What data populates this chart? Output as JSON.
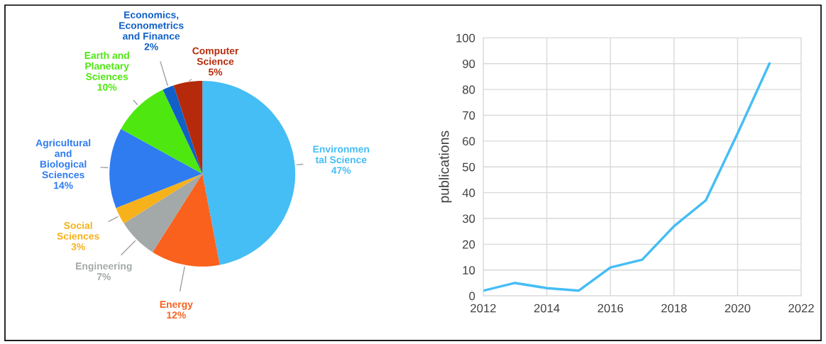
{
  "chart_data": [
    {
      "type": "pie",
      "categories": [
        "Environmen\ntal Science",
        "Energy",
        "Engineering",
        "Social\nSciences",
        "Agricultural\nand\nBiological\nSciences",
        "Earth and\nPlanetary\nSciences",
        "Economics,\nEconometrics\nand Finance",
        "Computer\nScience"
      ],
      "values": [
        47,
        12,
        7,
        3,
        14,
        10,
        2,
        5
      ],
      "value_labels": [
        "47%",
        "12%",
        "7%",
        "3%",
        "14%",
        "10%",
        "2%",
        "5%"
      ],
      "colors": [
        "#45bdf5",
        "#f9611d",
        "#a3a8a8",
        "#f7b21b",
        "#2f7cf0",
        "#4ee810",
        "#1060c8",
        "#b52a0a"
      ]
    },
    {
      "type": "line",
      "x": [
        2012,
        2013,
        2014,
        2015,
        2016,
        2017,
        2018,
        2019,
        2020,
        2021
      ],
      "series": [
        {
          "color": "#45bdf5",
          "values": [
            2,
            5,
            3,
            2,
            11,
            14,
            27,
            37,
            63,
            90
          ]
        }
      ],
      "ylabel": "publications",
      "xlim": [
        2012,
        2022
      ],
      "xticks": [
        2012,
        2014,
        2016,
        2018,
        2020,
        2022
      ],
      "ylim": [
        0,
        100
      ],
      "yticks": [
        0,
        10,
        20,
        30,
        40,
        50,
        60,
        70,
        80,
        90,
        100
      ],
      "grid": true,
      "marker": "none",
      "line_style": "solid"
    }
  ]
}
